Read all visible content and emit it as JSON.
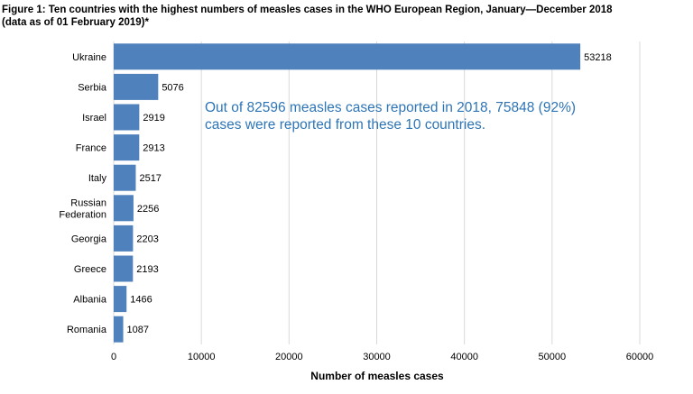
{
  "title_line1": "Figure 1: Ten countries with the highest numbers of measles cases in the WHO European Region, January—December 2018",
  "title_line2": "(data as of 01 February 2019)*",
  "annotation_line1": "Out of 82596 measles cases reported in 2018, 75848 (92%)",
  "annotation_line2": "cases were reported from these 10 countries.",
  "colors": {
    "bar": "#4f81bd",
    "grid": "#d9d9d9",
    "annotation": "#2e75b6",
    "text": "#000000"
  },
  "chart_data": {
    "type": "bar",
    "orientation": "horizontal",
    "categories": [
      "Ukraine",
      "Serbia",
      "Israel",
      "France",
      "Italy",
      "Russian Federation",
      "Georgia",
      "Greece",
      "Albania",
      "Romania"
    ],
    "category_lines": [
      [
        "Ukraine"
      ],
      [
        "Serbia"
      ],
      [
        "Israel"
      ],
      [
        "France"
      ],
      [
        "Italy"
      ],
      [
        "Russian",
        "Federation"
      ],
      [
        "Georgia"
      ],
      [
        "Greece"
      ],
      [
        "Albania"
      ],
      [
        "Romania"
      ]
    ],
    "values": [
      53218,
      5076,
      2919,
      2913,
      2517,
      2256,
      2203,
      2193,
      1466,
      1087
    ],
    "xlabel": "Number of measles cases",
    "xlim": [
      0,
      60000
    ],
    "xticks": [
      0,
      10000,
      20000,
      30000,
      40000,
      50000,
      60000
    ],
    "grid": "vertical",
    "data_labels": true
  }
}
